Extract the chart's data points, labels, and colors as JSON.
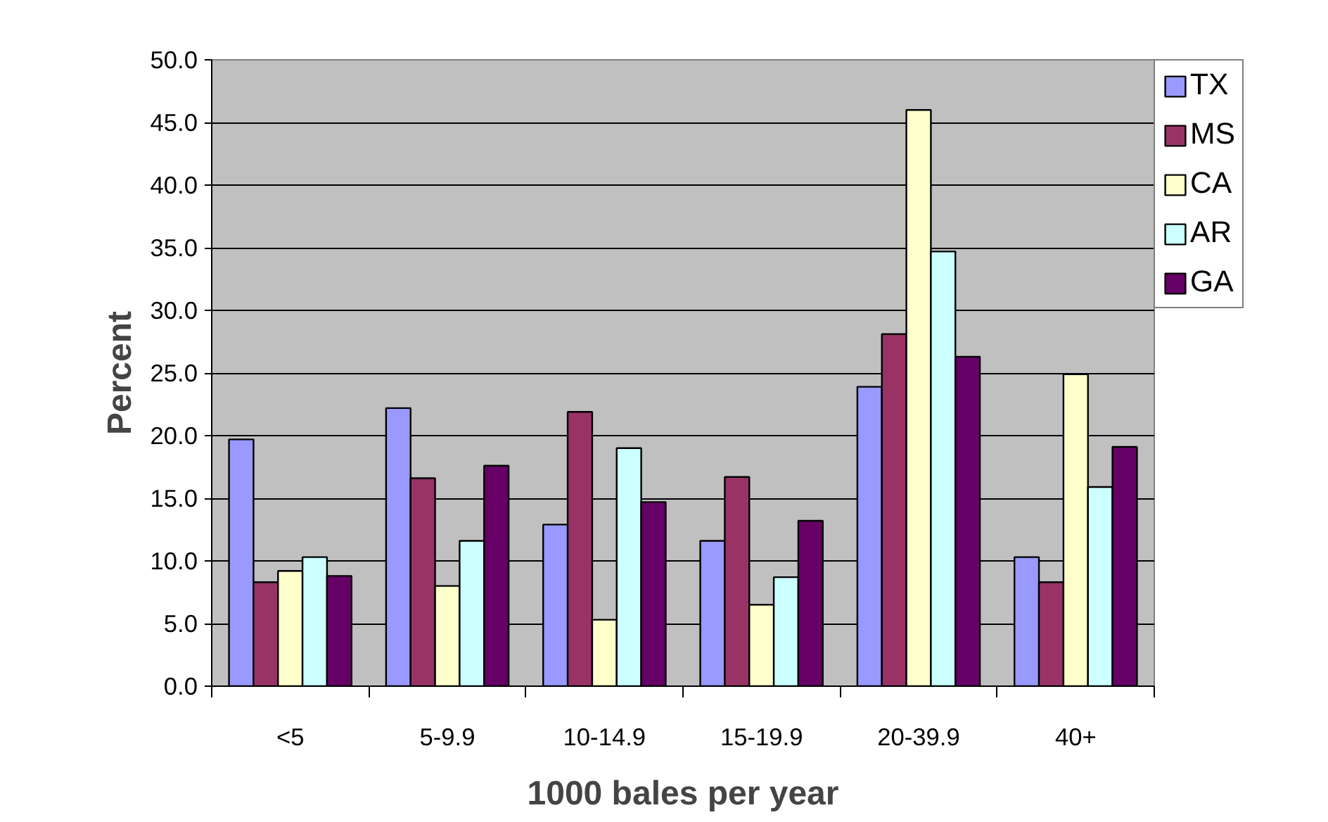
{
  "chart_data": {
    "type": "bar",
    "xlabel": "1000 bales per year",
    "ylabel": "Percent",
    "categories": [
      "<5",
      "5-9.9",
      "10-14.9",
      "15-19.9",
      "20-39.9",
      "40+"
    ],
    "series": [
      {
        "name": "TX",
        "color": "#9999ff",
        "values": [
          19.7,
          22.2,
          12.9,
          11.6,
          23.9,
          10.3
        ]
      },
      {
        "name": "MS",
        "color": "#993366",
        "values": [
          8.3,
          16.6,
          21.9,
          16.7,
          28.1,
          8.3
        ]
      },
      {
        "name": "CA",
        "color": "#ffffcc",
        "values": [
          9.2,
          8.0,
          5.3,
          6.5,
          46.0,
          24.9
        ]
      },
      {
        "name": "AR",
        "color": "#ccffff",
        "values": [
          10.3,
          11.6,
          19.0,
          8.7,
          34.7,
          15.9
        ]
      },
      {
        "name": "GA",
        "color": "#660066",
        "values": [
          8.8,
          17.6,
          14.7,
          13.2,
          26.3,
          19.1
        ]
      }
    ],
    "ylim": [
      0,
      50
    ],
    "yticks": [
      {
        "value": 0,
        "label": "0.0"
      },
      {
        "value": 5,
        "label": "5.0"
      },
      {
        "value": 10,
        "label": "10.0"
      },
      {
        "value": 15,
        "label": "15.0"
      },
      {
        "value": 20,
        "label": "20.0"
      },
      {
        "value": 25,
        "label": "25.0"
      },
      {
        "value": 30,
        "label": "30.0"
      },
      {
        "value": 35,
        "label": "35.0"
      },
      {
        "value": 40,
        "label": "40.0"
      },
      {
        "value": 45,
        "label": "45.0"
      },
      {
        "value": 50,
        "label": "50.0"
      }
    ],
    "grid": "y",
    "legend": "right"
  }
}
